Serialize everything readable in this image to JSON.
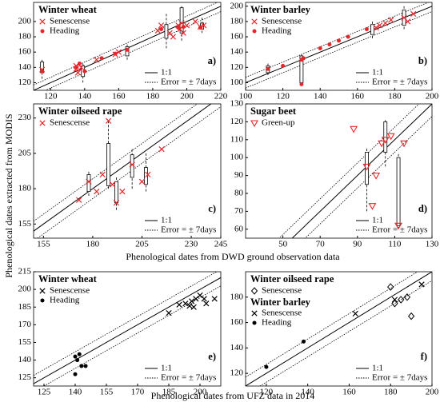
{
  "y_label": "Phenological dates extracted from MODIS",
  "x_label_top": "Phenological dates from DWD ground observation data",
  "x_label_bottom": "Phenological dates from UFZ data in 2014",
  "chart_data": [
    {
      "type": "scatter",
      "title": "Winter wheat",
      "panel": "a)",
      "xlim": [
        110,
        220
      ],
      "xticks": [
        120,
        140,
        160,
        180,
        200,
        220
      ],
      "ylim": [
        110,
        225
      ],
      "yticks": [
        120,
        140,
        160,
        180,
        200
      ],
      "reference_lines": [
        {
          "label": "1:1",
          "offset": 0
        },
        {
          "label": "Error = ± 7days",
          "offset": 7
        }
      ],
      "series": [
        {
          "name": "Senescense",
          "marker": "x",
          "color": "#e8262a",
          "x": [
            115,
            135,
            135,
            136,
            138,
            147,
            158,
            160,
            183,
            185,
            190,
            192,
            195,
            196,
            197,
            198,
            200,
            205,
            208,
            210
          ],
          "y": [
            137,
            138,
            142,
            133,
            140,
            150,
            157,
            160,
            188,
            195,
            185,
            180,
            195,
            190,
            198,
            185,
            195,
            200,
            193,
            195
          ]
        },
        {
          "name": "Heading",
          "marker": "dot",
          "color": "#e8262a",
          "x": [
            115,
            135,
            137,
            140,
            150,
            158,
            165,
            185,
            195,
            198,
            208
          ],
          "y": [
            135,
            140,
            145,
            135,
            152,
            158,
            163,
            190,
            192,
            193,
            192
          ]
        }
      ],
      "boxes": [
        {
          "x": 115,
          "q1": 133,
          "q3": 147,
          "min": 125,
          "max": 150
        },
        {
          "x": 139,
          "q1": 128,
          "q3": 142,
          "min": 120,
          "max": 145
        },
        {
          "x": 165,
          "q1": 155,
          "q3": 167,
          "min": 150,
          "max": 170
        },
        {
          "x": 188,
          "q1": 178,
          "q3": 196,
          "min": 165,
          "max": 210
        },
        {
          "x": 197,
          "q1": 185,
          "q3": 218,
          "min": 175,
          "max": 220
        },
        {
          "x": 209,
          "q1": 190,
          "q3": 198,
          "min": 185,
          "max": 205
        }
      ]
    },
    {
      "type": "scatter",
      "title": "Winter barley",
      "panel": "b)",
      "xlim": [
        100,
        200
      ],
      "xticks": [
        100,
        120,
        140,
        160,
        180,
        200
      ],
      "ylim": [
        90,
        205
      ],
      "yticks": [
        100,
        120,
        140,
        160,
        180,
        200
      ],
      "reference_lines": [
        {
          "label": "1:1",
          "offset": 0
        },
        {
          "label": "Error = ± 7days",
          "offset": 7
        }
      ],
      "series": [
        {
          "name": "Senescense",
          "marker": "x",
          "color": "#e8262a",
          "x": [
            170,
            172,
            175,
            178,
            185,
            190,
            187
          ],
          "y": [
            172,
            175,
            178,
            182,
            185,
            190,
            180
          ]
        },
        {
          "name": "Heading",
          "marker": "dot",
          "color": "#e8262a",
          "x": [
            112,
            120,
            130,
            131,
            140,
            145,
            150,
            155,
            130,
            165
          ],
          "y": [
            118,
            122,
            130,
            132,
            145,
            150,
            155,
            160,
            98,
            170
          ]
        }
      ],
      "boxes": [
        {
          "x": 112,
          "q1": 113,
          "q3": 122,
          "min": 110,
          "max": 125
        },
        {
          "x": 130,
          "q1": 100,
          "q3": 135,
          "min": 98,
          "max": 137
        },
        {
          "x": 168,
          "q1": 163,
          "q3": 176,
          "min": 158,
          "max": 180
        },
        {
          "x": 185,
          "q1": 175,
          "q3": 195,
          "min": 170,
          "max": 200
        }
      ]
    },
    {
      "type": "scatter",
      "title": "Winter oilseed rape",
      "panel": "c)",
      "xlim": [
        150,
        245
      ],
      "xticks": [
        155,
        180,
        205,
        230,
        245
      ],
      "ylim": [
        145,
        240
      ],
      "yticks": [
        155,
        180,
        205,
        230
      ],
      "reference_lines": [
        {
          "label": "1:1",
          "offset": 0
        },
        {
          "label": "Error = ± 7days",
          "offset": 7
        }
      ],
      "series": [
        {
          "name": "Senescense",
          "marker": "x",
          "color": "#e8262a",
          "x": [
            173,
            178,
            182,
            185,
            188,
            190,
            192,
            195,
            200,
            205,
            208,
            215
          ],
          "y": [
            172,
            185,
            178,
            190,
            228,
            183,
            170,
            178,
            197,
            185,
            190,
            208
          ]
        }
      ],
      "boxes": [
        {
          "x": 178,
          "q1": 178,
          "q3": 190,
          "min": 175,
          "max": 192
        },
        {
          "x": 188,
          "q1": 182,
          "q3": 212,
          "min": 180,
          "max": 228
        },
        {
          "x": 192,
          "q1": 170,
          "q3": 185,
          "min": 165,
          "max": 188
        },
        {
          "x": 200,
          "q1": 188,
          "q3": 204,
          "min": 180,
          "max": 208
        },
        {
          "x": 207,
          "q1": 183,
          "q3": 195,
          "min": 178,
          "max": 205
        }
      ]
    },
    {
      "type": "scatter",
      "title": "Sugar beet",
      "panel": "d)",
      "xlim": [
        30,
        130
      ],
      "xticks": [
        50,
        70,
        90,
        110,
        130
      ],
      "ylim": [
        55,
        130
      ],
      "yticks": [
        60,
        70,
        80,
        90,
        100,
        110,
        120,
        130
      ],
      "reference_lines": [
        {
          "label": "1:1",
          "offset": 0
        },
        {
          "label": "Error = ± 7days",
          "offset": 7
        }
      ],
      "series": [
        {
          "name": "Green-up",
          "marker": "triangle",
          "color": "#e8262a",
          "x": [
            88,
            95,
            98,
            100,
            103,
            105,
            108,
            112,
            115
          ],
          "y": [
            116,
            95,
            73,
            90,
            108,
            110,
            112,
            62,
            108
          ]
        }
      ],
      "boxes": [
        {
          "x": 95,
          "q1": 85,
          "q3": 103,
          "min": 70,
          "max": 105
        },
        {
          "x": 105,
          "q1": 103,
          "q3": 120,
          "min": 95,
          "max": 121
        },
        {
          "x": 112,
          "q1": 62,
          "q3": 100,
          "min": 60,
          "max": 102
        }
      ]
    },
    {
      "type": "scatter",
      "title": "Winter wheat",
      "panel": "e)",
      "xlim": [
        120,
        210
      ],
      "xticks": [
        125,
        140,
        155,
        170,
        185,
        200
      ],
      "ylim": [
        118,
        215
      ],
      "yticks": [
        125,
        140,
        155,
        170,
        185,
        200,
        215
      ],
      "reference_lines": [
        {
          "label": "1:1",
          "offset": 0
        },
        {
          "label": "Error = ± 7days",
          "offset": 7
        }
      ],
      "series": [
        {
          "name": "Senescense",
          "marker": "x",
          "color": "#000000",
          "x": [
            185,
            190,
            193,
            195,
            196,
            197,
            198,
            200,
            202,
            203,
            207
          ],
          "y": [
            180,
            187,
            188,
            186,
            190,
            185,
            192,
            195,
            192,
            188,
            192
          ]
        },
        {
          "name": "Heading",
          "marker": "dot",
          "color": "#000000",
          "x": [
            140,
            141,
            142,
            143,
            140,
            145
          ],
          "y": [
            143,
            140,
            145,
            135,
            128,
            135
          ]
        }
      ]
    },
    {
      "type": "scatter",
      "title": "Winter oilseed rape",
      "panel": "f)",
      "xlim": [
        110,
        200
      ],
      "xticks": [
        120,
        140,
        160,
        180,
        200
      ],
      "ylim": [
        110,
        200
      ],
      "yticks": [
        120,
        140,
        160,
        180
      ],
      "reference_lines": [
        {
          "label": "1:1",
          "offset": 0
        },
        {
          "label": "Error = ± 7days",
          "offset": 7
        }
      ],
      "series": [
        {
          "name": "Senescense",
          "marker": "diamond",
          "color": "#000000",
          "x": [
            180,
            182,
            185,
            188,
            190
          ],
          "y": [
            188,
            175,
            178,
            180,
            165
          ]
        },
        {
          "group": "Winter barley",
          "name": "Senescense",
          "marker": "x",
          "color": "#000000",
          "x": [
            163,
            182,
            195
          ],
          "y": [
            167,
            178,
            190
          ]
        },
        {
          "name": "Heading",
          "marker": "dot",
          "color": "#000000",
          "x": [
            120,
            138
          ],
          "y": [
            125,
            145
          ]
        }
      ]
    }
  ]
}
